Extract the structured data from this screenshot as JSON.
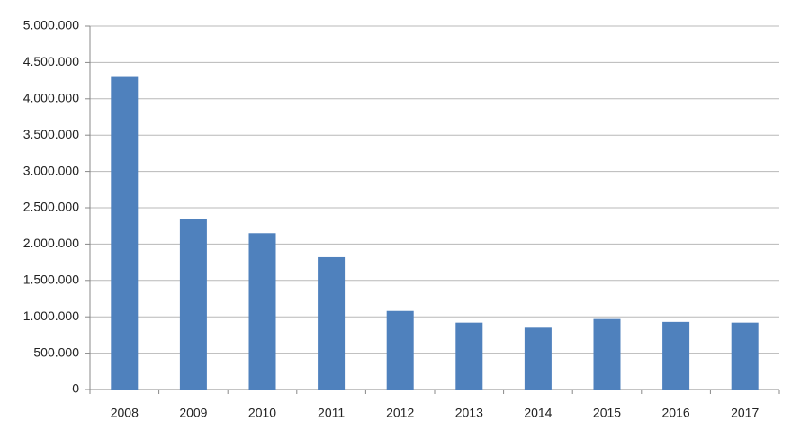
{
  "chart_data": {
    "type": "bar",
    "categories": [
      "2008",
      "2009",
      "2010",
      "2011",
      "2012",
      "2013",
      "2014",
      "2015",
      "2016",
      "2017"
    ],
    "values": [
      4300000,
      2350000,
      2150000,
      1820000,
      1080000,
      920000,
      850000,
      970000,
      930000,
      920000
    ],
    "color": "#4f81bd",
    "ylim": [
      0,
      5000000
    ],
    "yticks": [
      0,
      {
        "value": 500000,
        "label": "500.000"
      },
      {
        "value": 1000000,
        "label": "1.000.000"
      },
      {
        "value": 1500000,
        "label": "1.500.000"
      },
      {
        "value": 2000000,
        "label": "2.000.000"
      },
      {
        "value": 2500000,
        "label": "2.500.000"
      },
      {
        "value": 3000000,
        "label": "3.000.000"
      },
      {
        "value": 3500000,
        "label": "3.500.000"
      },
      {
        "value": 4000000,
        "label": "4.000.000"
      },
      {
        "value": 4500000,
        "label": "4.500.000"
      },
      {
        "value": 5000000,
        "label": "5.000.000"
      }
    ],
    "grid": true
  }
}
